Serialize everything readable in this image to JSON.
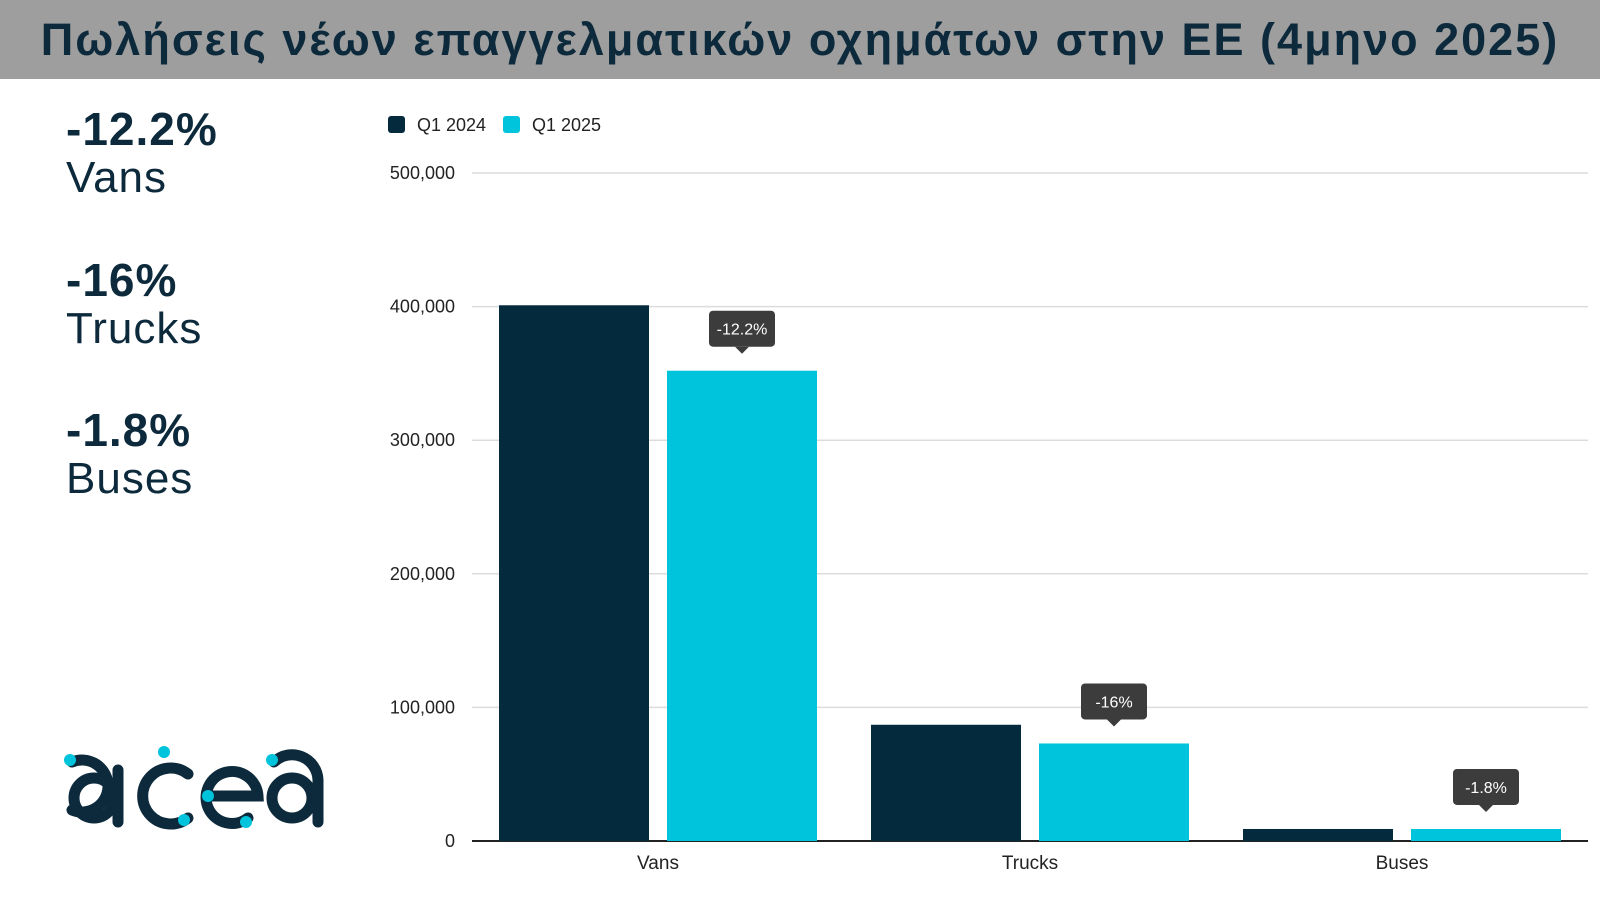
{
  "header": {
    "title": "Πωλήσεις νέων επαγγελματικών οχημάτων στην ΕΕ (4μηνο 2025)"
  },
  "summary": [
    {
      "pct": "-12.2%",
      "label": "Vans"
    },
    {
      "pct": "-16%",
      "label": "Trucks"
    },
    {
      "pct": "-1.8%",
      "label": "Buses"
    }
  ],
  "logo": {
    "name": "acea-logo",
    "text": "acea",
    "color": "#0d2a3c",
    "dot_color": "#00c3dc"
  },
  "colors": {
    "q1_2024": "#032a3d",
    "q1_2025": "#00c3dc",
    "callout": "#3c3c3c"
  },
  "chart_data": {
    "type": "bar",
    "categories": [
      "Vans",
      "Trucks",
      "Buses"
    ],
    "series": [
      {
        "name": "Q1 2024",
        "values": [
          401000,
          87000,
          9000
        ]
      },
      {
        "name": "Q1 2025",
        "values": [
          352000,
          73000,
          9000
        ]
      }
    ],
    "annotations": [
      "-12.2%",
      "-16%",
      "-1.8%"
    ],
    "yticks": [
      "0",
      "100,000",
      "200,000",
      "300,000",
      "400,000",
      "500,000"
    ],
    "ylim": [
      0,
      500000
    ],
    "grid": true,
    "legend": "top-left"
  }
}
